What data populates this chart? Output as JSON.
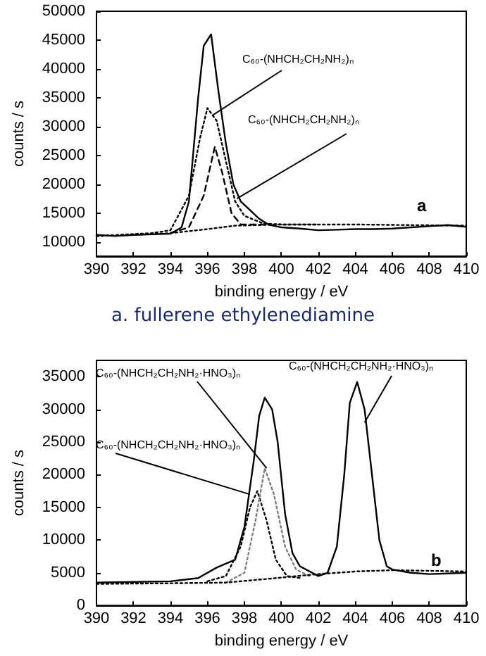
{
  "chart_data": [
    {
      "type": "line",
      "title": "a. fullerene ethylenediamine",
      "xlabel": "binding energy / eV",
      "ylabel": "counts / s",
      "xlim": [
        390,
        410
      ],
      "xticks": [
        390,
        392,
        394,
        396,
        398,
        400,
        402,
        404,
        406,
        408,
        410
      ],
      "ylim": [
        7500,
        50000
      ],
      "yticks": [
        10000,
        15000,
        20000,
        25000,
        30000,
        35000,
        40000,
        45000,
        50000
      ],
      "grid": false,
      "marker": "none",
      "annotations": [
        "a",
        {
          "text": "C₆₀-(NHCH₂CH₂NH₂)ₙ",
          "x": 396.3,
          "y": 32000
        },
        {
          "text": "C₆₀-(NHCH₂CH₂NH₂)ₙ",
          "x": 397.6,
          "y": 17500
        }
      ],
      "series": [
        {
          "color": "#000000",
          "line_style": "solid",
          "x": [
            390,
            391,
            392,
            393,
            394,
            394.6,
            395,
            395.5,
            395.8,
            396.2,
            396.6,
            397,
            397.4,
            397.8,
            398.3,
            398.8,
            399.3,
            400,
            401,
            402,
            403,
            404,
            405,
            406,
            407,
            408,
            409,
            410
          ],
          "values": [
            11200,
            11000,
            11200,
            11300,
            11400,
            12500,
            17000,
            35000,
            44000,
            46000,
            36000,
            27000,
            20000,
            17000,
            15500,
            14000,
            13000,
            12500,
            12300,
            12000,
            12100,
            12200,
            12200,
            12300,
            12500,
            12700,
            12900,
            12600
          ]
        },
        {
          "color": "#000000",
          "line_style": "dotted",
          "x": [
            390,
            393,
            394,
            395,
            395.6,
            396,
            396.5,
            397,
            397.5,
            398,
            399,
            400,
            402
          ],
          "values": [
            11000,
            11500,
            12000,
            18000,
            28000,
            33200,
            31000,
            24000,
            17000,
            14500,
            13200,
            13000,
            13000
          ]
        },
        {
          "color": "#000000",
          "line_style": "dashed",
          "x": [
            394,
            395,
            395.8,
            396.4,
            396.8,
            397.3,
            397.8,
            399
          ],
          "values": [
            11500,
            12500,
            18000,
            26500,
            22000,
            15000,
            13000,
            13000
          ]
        },
        {
          "color": "#000000",
          "line_style": "dotted",
          "x": [
            390,
            392,
            394,
            396,
            397.5,
            400,
            404,
            410
          ],
          "values": [
            11000,
            11200,
            11500,
            12200,
            12800,
            13000,
            13000,
            12800
          ]
        }
      ]
    },
    {
      "type": "line",
      "xlabel": "binding energy / eV",
      "ylabel": "counts / s",
      "xlim": [
        390,
        410
      ],
      "xticks": [
        390,
        392,
        394,
        396,
        398,
        400,
        402,
        404,
        406,
        408,
        410
      ],
      "ylim": [
        0,
        37500
      ],
      "yticks": [
        0,
        5000,
        10000,
        15000,
        20000,
        25000,
        30000,
        35000
      ],
      "grid": false,
      "marker": "none",
      "annotations": [
        "b",
        {
          "text": "C₆₀-(NHCH₂CH₂NH₂·HNO₃)ₙ",
          "x": 399.2,
          "y": 21000
        },
        {
          "text": "C₆₀-(NHCH₂CH₂NH₂·HNO₃)ₙ",
          "x": 398.3,
          "y": 17000
        },
        {
          "text": "C₆₀-(NHCH₂CH₂NH₂·HNO₃)ₙ",
          "x": 404.5,
          "y": 28000
        }
      ],
      "series": [
        {
          "color": "#000000",
          "line_style": "solid",
          "x": [
            390,
            392,
            394,
            395.5,
            396.5,
            397.5,
            398,
            398.5,
            398.8,
            399.1,
            399.5,
            399.8,
            400.2,
            400.6,
            401,
            402,
            402.5,
            403,
            403.4,
            403.7,
            404.1,
            404.5,
            404.9,
            405.3,
            405.7,
            406,
            407,
            408,
            409,
            410
          ],
          "values": [
            3500,
            3600,
            3700,
            4200,
            5800,
            7000,
            12000,
            22000,
            29000,
            31800,
            30000,
            25000,
            14000,
            8000,
            6000,
            4500,
            5000,
            9000,
            20000,
            31000,
            34200,
            30000,
            20000,
            10000,
            6000,
            5500,
            5000,
            4800,
            4900,
            5000
          ]
        },
        {
          "color": "#000000",
          "line_style": "dotted",
          "x": [
            396,
            397,
            397.8,
            398.3,
            398.7,
            399.2,
            399.7,
            400.3,
            401
          ],
          "values": [
            3700,
            4500,
            9000,
            15000,
            17500,
            13000,
            7000,
            4500,
            4200
          ]
        },
        {
          "color": "#808080",
          "line_style": "dotted",
          "x": [
            397,
            398,
            398.6,
            399.1,
            399.6,
            400.2,
            400.8,
            401.5
          ],
          "values": [
            3500,
            5000,
            13000,
            21000,
            17000,
            9000,
            5500,
            4500
          ]
        },
        {
          "color": "#000000",
          "line_style": "dotted",
          "x": [
            390,
            394,
            397,
            399,
            402,
            404,
            406,
            410
          ],
          "values": [
            3300,
            3400,
            3500,
            4000,
            4800,
            5200,
            5400,
            5200
          ]
        }
      ]
    }
  ]
}
